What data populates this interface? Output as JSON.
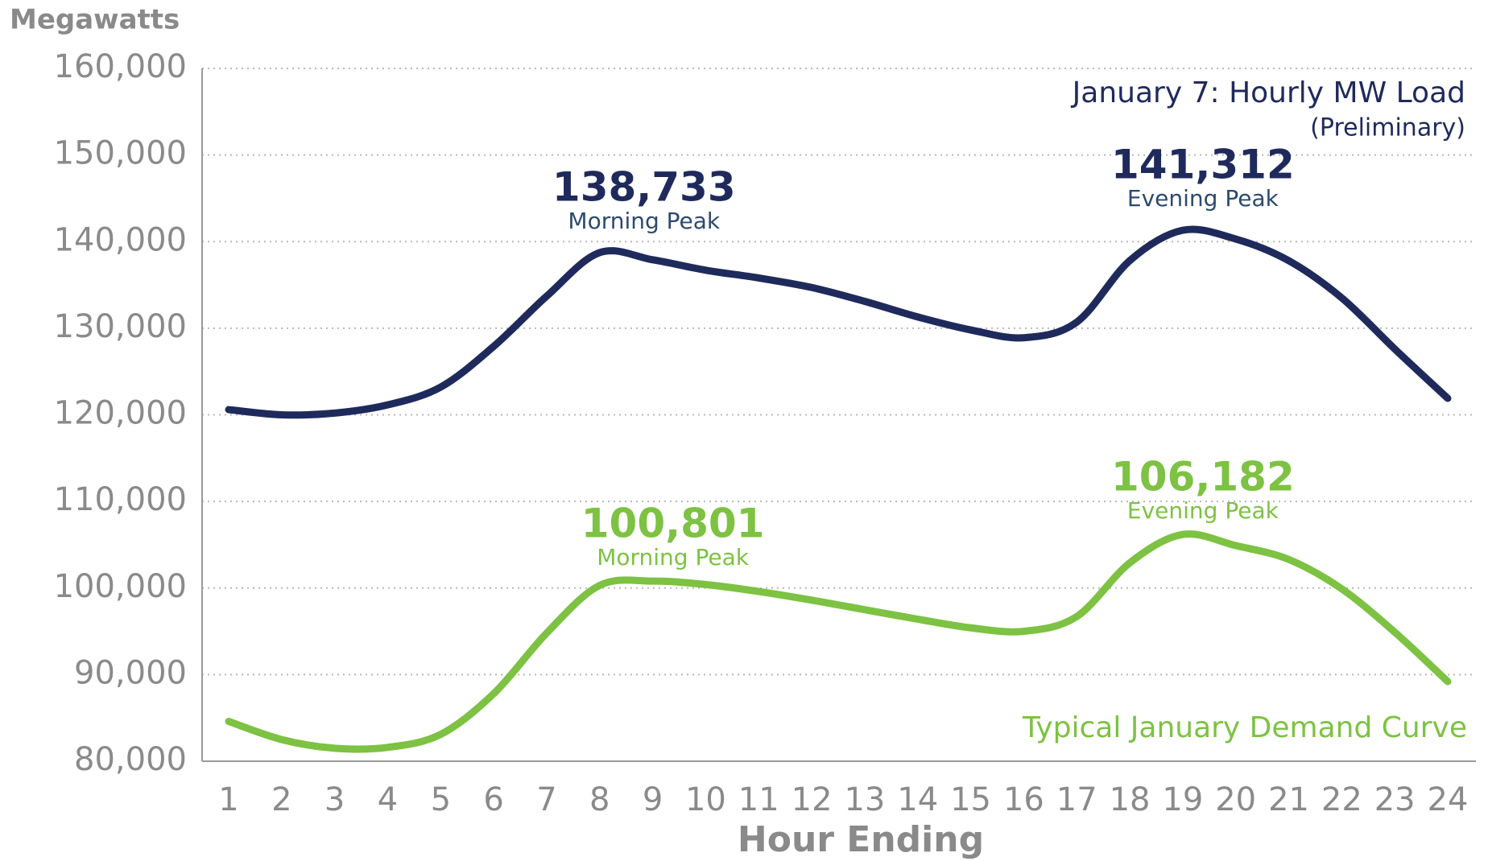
{
  "chart_data": {
    "type": "line",
    "ylabel": "Megawatts",
    "xlabel": "Hour Ending",
    "subtitle": "(Preliminary)",
    "categories": [
      1,
      2,
      3,
      4,
      5,
      6,
      7,
      8,
      9,
      10,
      11,
      12,
      13,
      14,
      15,
      16,
      17,
      18,
      19,
      20,
      21,
      22,
      23,
      24
    ],
    "series": [
      {
        "name": "January 7: Hourly MW Load",
        "color": "#1f2a5c",
        "values": [
          120600,
          120000,
          120200,
          121150,
          123200,
          127900,
          133700,
          138733,
          137900,
          136700,
          135800,
          134700,
          133100,
          131300,
          129800,
          128900,
          130700,
          137800,
          141312,
          140300,
          137800,
          133500,
          127600,
          121900
        ]
      },
      {
        "name": "Typical January Demand Curve",
        "color": "#7dc242",
        "values": [
          84600,
          82500,
          81500,
          81600,
          83100,
          87800,
          94800,
          100300,
          100801,
          100400,
          99600,
          98600,
          97500,
          96400,
          95400,
          95000,
          96700,
          102900,
          106182,
          104900,
          103300,
          99900,
          94900,
          89200
        ]
      }
    ],
    "annotations": [
      {
        "series": 0,
        "x": 8,
        "value": 138733,
        "label": "138,733",
        "note": "Morning Peak"
      },
      {
        "series": 0,
        "x": 19,
        "value": 141312,
        "label": "141,312",
        "note": "Evening Peak"
      },
      {
        "series": 1,
        "x": 9,
        "value": 100801,
        "label": "100,801",
        "note": "Morning Peak"
      },
      {
        "series": 1,
        "x": 19,
        "value": 106182,
        "label": "106,182",
        "note": "Evening Peak"
      }
    ],
    "ylim": [
      80000,
      160000
    ],
    "yticks": [
      {
        "value": 80000,
        "label": "80,000"
      },
      {
        "value": 90000,
        "label": "90,000"
      },
      {
        "value": 100000,
        "label": "100,000"
      },
      {
        "value": 110000,
        "label": "110,000"
      },
      {
        "value": 120000,
        "label": "120,000"
      },
      {
        "value": 130000,
        "label": "130,000"
      },
      {
        "value": 140000,
        "label": "140,000"
      },
      {
        "value": 150000,
        "label": "150,000"
      },
      {
        "value": 160000,
        "label": "160,000"
      }
    ],
    "grid": true
  }
}
